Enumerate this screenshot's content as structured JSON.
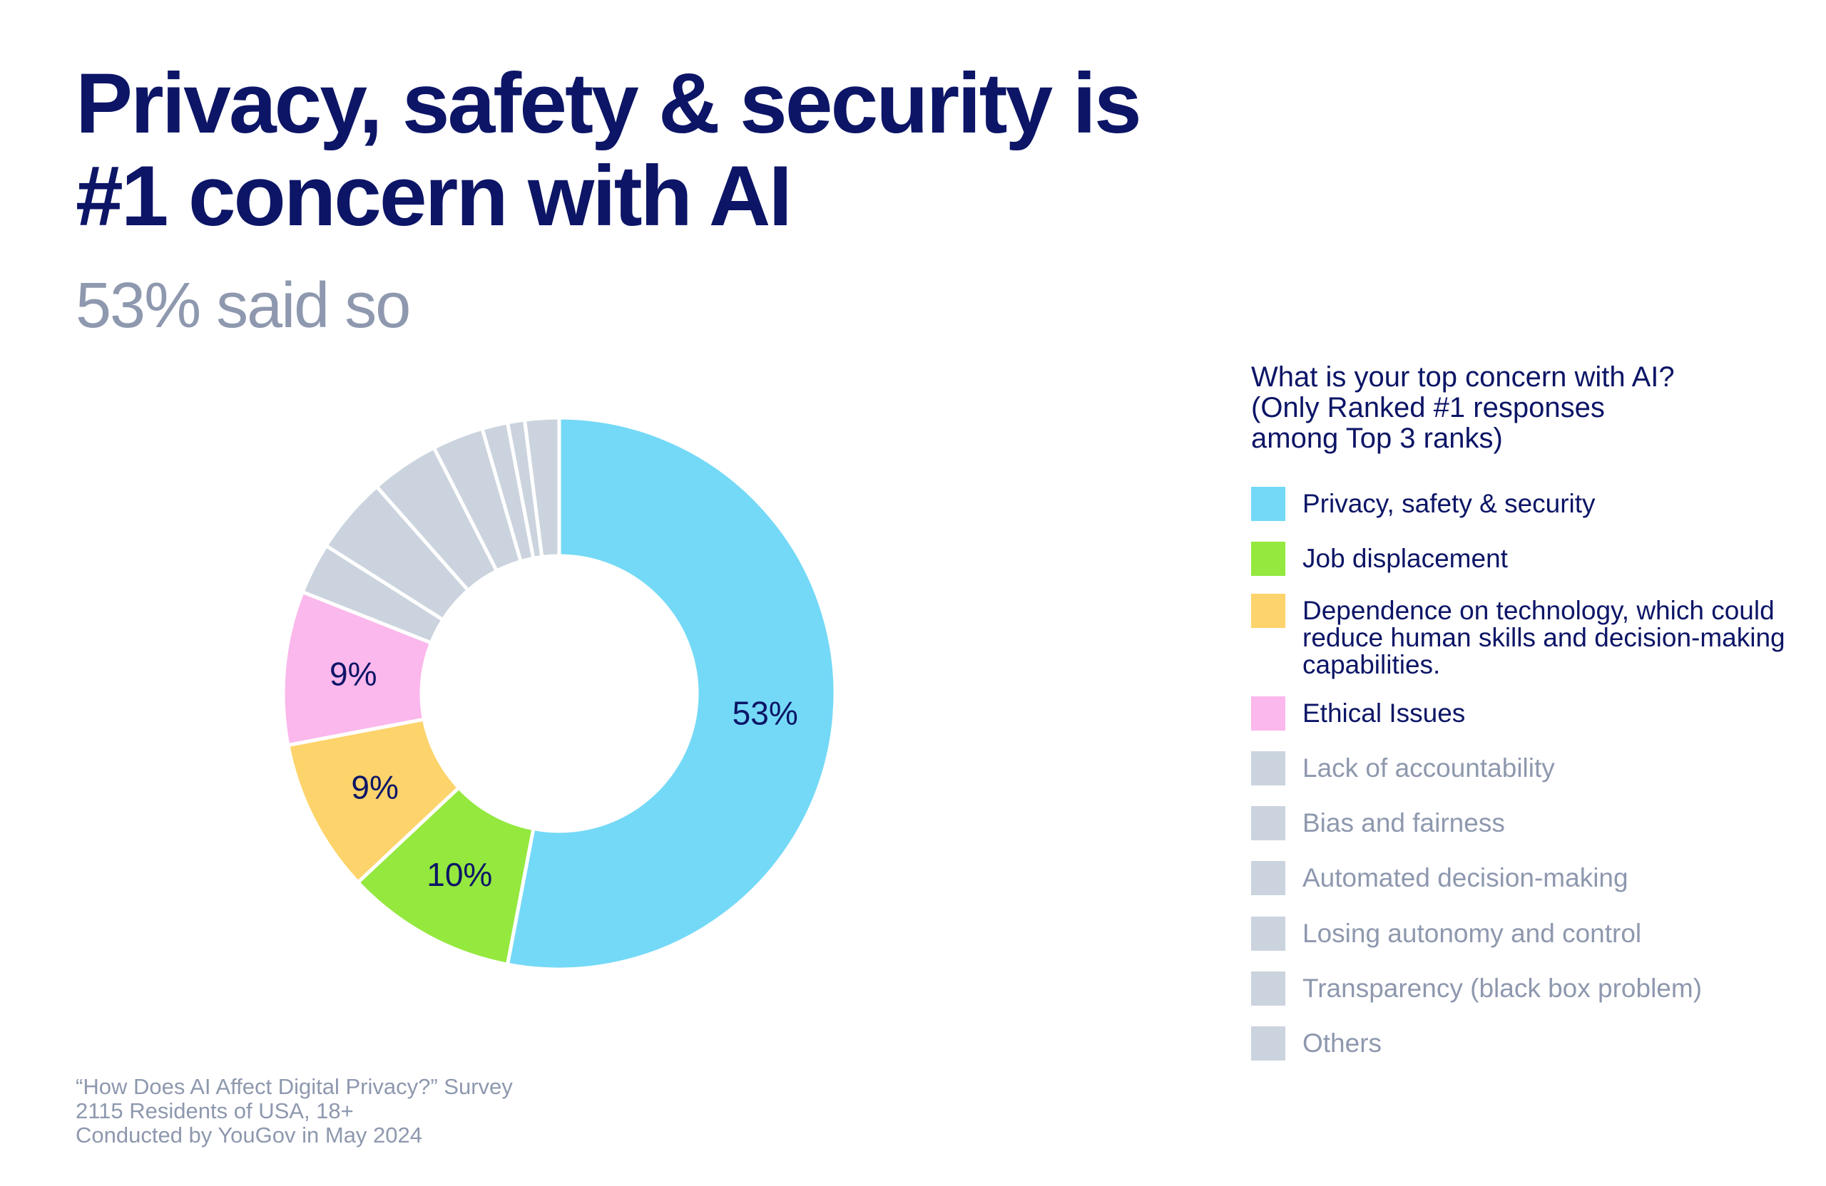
{
  "title_line1": "Privacy, safety & security is",
  "title_line2": "#1 concern with AI",
  "subtitle": "53% said so",
  "footer": [
    "“How Does AI Affect Digital Privacy?” Survey",
    "2115 Residents of USA, 18+",
    "Conducted by YouGov in May 2024"
  ],
  "chart_data": {
    "type": "pie",
    "donut": true,
    "title": "What is your top concern with AI? (Only Ranked #1 responses among Top 3 ranks)",
    "legend_title_lines": [
      "What is your top concern with AI?",
      "(Only Ranked #1 responses",
      "among Top 3 ranks)"
    ],
    "legend_placement": "right",
    "slices": [
      {
        "label": "Privacy, safety & security",
        "value": 53,
        "color": "#74d9f7",
        "data_label": "53%"
      },
      {
        "label": "Job displacement",
        "value": 10,
        "color": "#94e83e",
        "data_label": "10%"
      },
      {
        "label": "Dependence on technology, which could reduce human skills and decision-making capabilities.",
        "value": 9,
        "color": "#fdd36b",
        "data_label": "9%"
      },
      {
        "label": "Ethical Issues",
        "value": 9,
        "color": "#fbb8ec",
        "data_label": "9%"
      },
      {
        "label": "Lack of accountability",
        "value": 3,
        "color": "#cbd4de"
      },
      {
        "label": "Bias and fairness",
        "value": 4.5,
        "color": "#cbd4de"
      },
      {
        "label": "Automated decision-making",
        "value": 4,
        "color": "#cbd4de"
      },
      {
        "label": "Losing autonomy and control",
        "value": 3,
        "color": "#cbd4de"
      },
      {
        "label": "Transparency (black box problem)",
        "value": 1.5,
        "color": "#cbd4de"
      },
      {
        "label": "Others",
        "value": 1,
        "color": "#cbd4de"
      },
      {
        "label": "Others",
        "value": 2,
        "color": "#cbd4de"
      }
    ],
    "legend": [
      {
        "label": "Privacy, safety & security",
        "color": "#74d9f7",
        "muted": false
      },
      {
        "label": "Job displacement",
        "color": "#94e83e",
        "muted": false
      },
      {
        "label": "Dependence on technology, which could reduce human skills and decision-making capabilities.",
        "color": "#fdd36b",
        "muted": false
      },
      {
        "label": "Ethical Issues",
        "color": "#fbb8ec",
        "muted": false
      },
      {
        "label": "Lack of accountability",
        "color": "#cbd4de",
        "muted": true
      },
      {
        "label": "Bias and fairness",
        "color": "#cbd4de",
        "muted": true
      },
      {
        "label": "Automated decision-making",
        "color": "#cbd4de",
        "muted": true
      },
      {
        "label": "Losing autonomy and control",
        "color": "#cbd4de",
        "muted": true
      },
      {
        "label": "Transparency (black box problem)",
        "color": "#cbd4de",
        "muted": true
      },
      {
        "label": "Others",
        "color": "#cbd4de",
        "muted": true
      }
    ]
  }
}
